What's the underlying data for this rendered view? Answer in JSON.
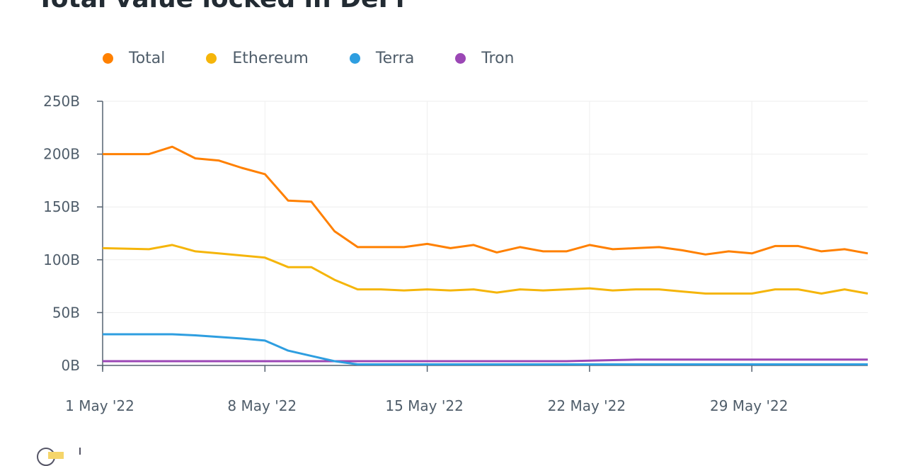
{
  "chart_data": {
    "type": "line",
    "title": "Total value locked in DeFi",
    "xlabel": "",
    "ylabel": "",
    "x_start": "2022-05-01",
    "x_end": "2022-06-03",
    "x_ticks": [
      "1 May '22",
      "8 May '22",
      "15 May '22",
      "22 May '22",
      "29 May '22"
    ],
    "y_ticks": [
      "0B",
      "50B",
      "100B",
      "150B",
      "200B",
      "250B"
    ],
    "ylim": [
      0,
      250
    ],
    "y_unit": "B",
    "grid": true,
    "legend_position": "top-left",
    "x_dates": [
      "2022-05-01",
      "2022-05-02",
      "2022-05-03",
      "2022-05-04",
      "2022-05-05",
      "2022-05-06",
      "2022-05-07",
      "2022-05-08",
      "2022-05-09",
      "2022-05-10",
      "2022-05-11",
      "2022-05-12",
      "2022-05-13",
      "2022-05-14",
      "2022-05-15",
      "2022-05-16",
      "2022-05-17",
      "2022-05-18",
      "2022-05-19",
      "2022-05-20",
      "2022-05-21",
      "2022-05-22",
      "2022-05-23",
      "2022-05-24",
      "2022-05-25",
      "2022-05-26",
      "2022-05-27",
      "2022-05-28",
      "2022-05-29",
      "2022-05-30",
      "2022-05-31",
      "2022-06-01",
      "2022-06-02",
      "2022-06-03"
    ],
    "series": [
      {
        "name": "Total",
        "color": "#ff8000",
        "values": [
          200,
          200,
          200,
          207,
          196,
          194,
          187,
          181,
          156,
          155,
          127,
          112,
          112,
          112,
          115,
          111,
          114,
          107,
          112,
          108,
          108,
          114,
          110,
          111,
          112,
          109,
          105,
          108,
          106,
          113,
          113,
          108,
          110,
          106
        ]
      },
      {
        "name": "Ethereum",
        "color": "#f5b50a",
        "values": [
          111,
          110.5,
          110,
          114,
          108,
          106,
          104,
          102,
          93,
          93,
          81,
          72,
          72,
          71,
          72,
          71,
          72,
          69,
          72,
          71,
          72,
          73,
          71,
          72,
          72,
          70,
          68,
          68,
          68,
          72,
          72,
          68,
          72,
          68
        ]
      },
      {
        "name": "Terra",
        "color": "#2e9ee0",
        "values": [
          29.5,
          29.5,
          29.5,
          29.5,
          28.5,
          27,
          25.5,
          23.5,
          14,
          9,
          4,
          1,
          1,
          1,
          1,
          1,
          1,
          1,
          1,
          1,
          1,
          1,
          1,
          1,
          1,
          1,
          1,
          1,
          1,
          1,
          1,
          1,
          1,
          1
        ]
      },
      {
        "name": "Tron",
        "color": "#9b47b5",
        "values": [
          4,
          4,
          4,
          4,
          4,
          4,
          4,
          4,
          4,
          4,
          4,
          4,
          4,
          4,
          4,
          4,
          4,
          4,
          4,
          4,
          4,
          4.5,
          5,
          5.5,
          5.5,
          5.5,
          5.5,
          5.5,
          5.5,
          5.5,
          5.5,
          5.5,
          5.5,
          5.5
        ]
      }
    ]
  }
}
